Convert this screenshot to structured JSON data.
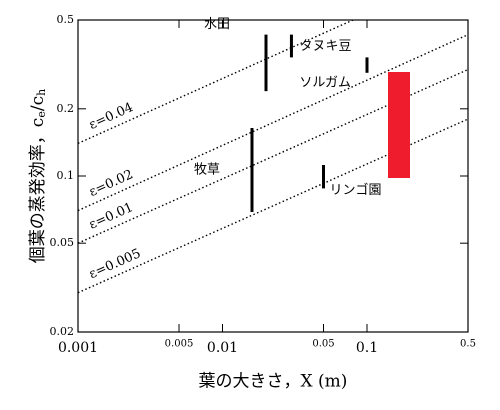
{
  "chart_data": {
    "type": "range",
    "xlabel": "葉の大きさ，X (m)",
    "ylabel": [
      "個葉の蒸発効率，c",
      "e",
      "/c",
      "h"
    ],
    "xscale": "log",
    "yscale": "log",
    "xlim": [
      0.001,
      0.5
    ],
    "ylim": [
      0.02,
      0.5
    ],
    "xticks": [
      0.001,
      0.005,
      0.01,
      0.05,
      0.1,
      0.5
    ],
    "yticks": [
      0.02,
      0.05,
      0.1,
      0.2,
      0.5
    ],
    "color": "#000000",
    "series": [
      {
        "name": "水田",
        "x": 0.02,
        "values": [
          0.24,
          0.43
        ]
      },
      {
        "name": "タヌキ豆",
        "x": 0.03,
        "values": [
          0.34,
          0.43
        ]
      },
      {
        "name": "ソルガム",
        "x": 0.1,
        "values": [
          0.29,
          0.34
        ]
      },
      {
        "name": "牧草",
        "x": 0.016,
        "values": [
          0.069,
          0.164
        ]
      },
      {
        "name": "リンゴ園",
        "x": 0.05,
        "values": [
          0.088,
          0.112
        ]
      }
    ],
    "lines": [
      {
        "name": "ε=0.04",
        "x": [
          0.001,
          0.08
        ],
        "values": [
          0.14,
          0.5
        ]
      },
      {
        "name": "ε=0.02",
        "x": [
          0.001,
          0.5
        ],
        "values": [
          0.07,
          0.43
        ]
      },
      {
        "name": "ε=0.01",
        "x": [
          0.001,
          0.5
        ],
        "values": [
          0.05,
          0.3
        ]
      },
      {
        "name": "ε=0.005",
        "x": [
          0.001,
          0.5
        ],
        "values": [
          0.03,
          0.18
        ]
      }
    ]
  }
}
